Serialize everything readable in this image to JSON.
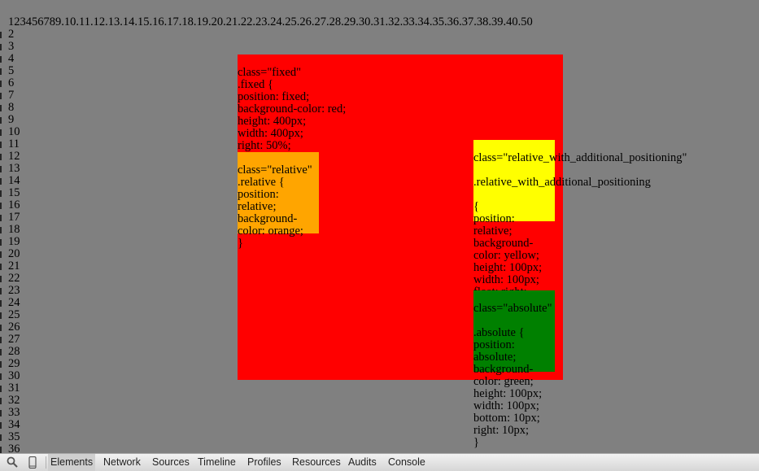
{
  "page": {
    "top_line": "123456789.10.11.12.13.14.15.16.17.18.19.20.21.22.23.24.25.26.27.28.29.30.31.32.33.34.35.36.37.38.39.40.50",
    "line_numbers": [
      "2",
      "3",
      "4",
      "5",
      "6",
      "7",
      "8",
      "9",
      "10",
      "11",
      "12",
      "13",
      "14",
      "15",
      "16",
      "17",
      "18",
      "19",
      "20",
      "21",
      "22",
      "23",
      "24",
      "25",
      "26",
      "27",
      "28",
      "29",
      "30",
      "31",
      "32",
      "33",
      "34",
      "35",
      "36"
    ]
  },
  "boxes": {
    "fixed": {
      "color": "#ff0000",
      "text": "class=\"fixed\"\n.fixed {\nposition: fixed;\nbackground-color: red;\nheight: 400px;\nwidth: 400px;\nright: 50%;\n}"
    },
    "relative": {
      "color": "#ffa500",
      "text": "class=\"relative\"\n.relative {\nposition:\nrelative;\nbackground-\ncolor: orange;\n}"
    },
    "relative_with_additional_positioning": {
      "color": "#ffff00",
      "label": "class=\"relative_with_additional_positioning\"",
      "selector": ".relative_with_additional_positioning",
      "text": "{\nposition:\nrelative;\nbackground-\ncolor: yellow;\nheight: 100px;\nwidth: 100px;\nfloat: right;\nright: 10px;\n}"
    },
    "absolute": {
      "color": "#008000",
      "label": "class=\"absolute\"",
      "text": ".absolute {\nposition:\nabsolute;\nbackground-\ncolor: green;\nheight: 100px;\nwidth: 100px;\nbottom: 10px;\nright: 10px;\n}"
    }
  },
  "devtools": {
    "icons": [
      "search-icon",
      "mobile-device-icon"
    ],
    "tabs": [
      "Elements",
      "Network",
      "Sources",
      "Timeline",
      "Profiles",
      "Resources",
      "Audits",
      "Console"
    ],
    "active_tab": "Elements"
  }
}
